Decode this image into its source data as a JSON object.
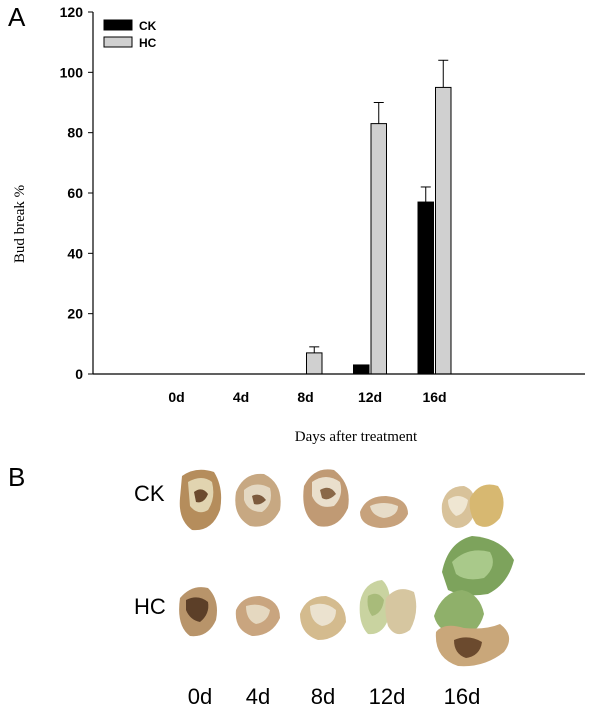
{
  "panel_a": {
    "letter": "A"
  },
  "panel_b": {
    "letter": "B",
    "row_labels": [
      "CK",
      "HC"
    ],
    "day_labels": [
      "0d",
      "4d",
      "8d",
      "12d",
      "16d"
    ]
  },
  "colors": {
    "ck": "#000000",
    "hc": "#d0d0d0",
    "bud_tan": "#c9a77a",
    "bud_brown": "#6b4a2e",
    "leaf_green": "#7da35c"
  },
  "chart_data": {
    "type": "bar",
    "title": "",
    "xlabel": "Days after treatment",
    "ylabel": "Bud break %",
    "categories": [
      "0d",
      "4d",
      "8d",
      "12d",
      "16d"
    ],
    "ylim": [
      0,
      120
    ],
    "yticks": [
      0,
      20,
      40,
      60,
      80,
      100,
      120
    ],
    "grid": false,
    "legend_position": "top-left",
    "series": [
      {
        "name": "CK",
        "color": "#000000",
        "values": [
          0,
          0,
          0,
          3,
          57
        ],
        "errors": [
          0,
          0,
          0,
          0,
          5
        ]
      },
      {
        "name": "HC",
        "color": "#d0d0d0",
        "values": [
          0,
          0,
          7,
          83,
          95
        ],
        "errors": [
          0,
          0,
          2,
          7,
          9
        ]
      }
    ]
  }
}
